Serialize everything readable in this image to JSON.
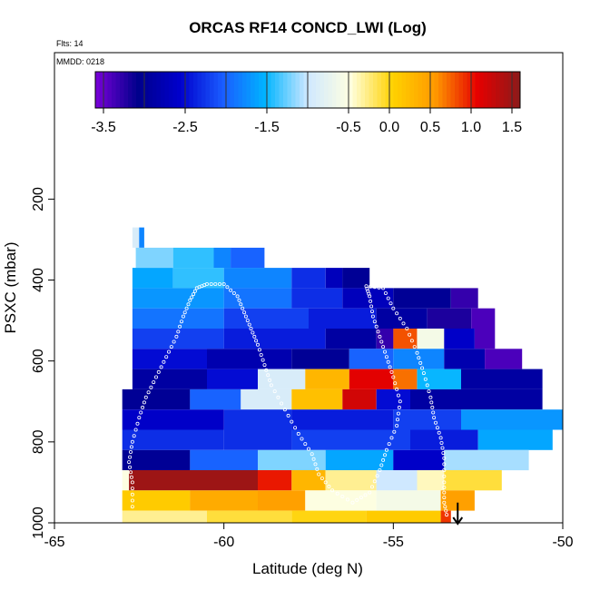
{
  "chart_data": {
    "type": "heatmap",
    "title": "ORCAS RF14 CONCD_LWI (Log)",
    "flights_label": "Flts: 14",
    "date_label": "MMDD: 0218",
    "xlabel": "Latitude (deg N)",
    "ylabel": "PSXC (mbar)",
    "xlim": [
      -65,
      -50
    ],
    "ylim": [
      1000,
      0
    ],
    "x_ticks": [
      -65,
      -60,
      -55,
      -50
    ],
    "y_ticks": [
      200,
      400,
      600,
      800,
      1000
    ],
    "colorbar": {
      "range": [
        -3.6,
        1.6
      ],
      "ticks": [
        -3.5,
        -2.5,
        -1.5,
        -0.5,
        0.0,
        0.5,
        1.0,
        1.5
      ],
      "tick_labels": [
        "-3.5",
        "-2.5",
        "-1.5",
        "-0.5",
        "0.0",
        "0.5",
        "1.0",
        "1.5"
      ],
      "colors": [
        "#7a00d9",
        "#00008b",
        "#0000cd",
        "#1a5cff",
        "#00b4ff",
        "#cfe8ff",
        "#ffffe0",
        "#ffd200",
        "#ff9900",
        "#e60000",
        "#8b1a1a"
      ]
    },
    "bands": [
      {
        "p": [
          270,
          320
        ],
        "segments": [
          {
            "x0": -62.7,
            "x1": -62.5,
            "v": -0.9
          },
          {
            "x0": -62.5,
            "x1": -62.35,
            "v": -1.8
          }
        ]
      },
      {
        "p": [
          320,
          370
        ],
        "segments": [
          {
            "x0": -62.6,
            "x1": -61.5,
            "v": -1.2
          },
          {
            "x0": -61.5,
            "x1": -60.3,
            "v": -1.4
          },
          {
            "x0": -60.3,
            "x1": -59.8,
            "v": -1.8
          },
          {
            "x0": -59.8,
            "x1": -58.8,
            "v": -2.0
          }
        ]
      },
      {
        "p": [
          370,
          420
        ],
        "segments": [
          {
            "x0": -62.7,
            "x1": -61.5,
            "v": -1.6
          },
          {
            "x0": -61.5,
            "x1": -60.0,
            "v": -1.4
          },
          {
            "x0": -60.0,
            "x1": -59.0,
            "v": -1.8
          },
          {
            "x0": -59.0,
            "x1": -58.0,
            "v": -1.8
          },
          {
            "x0": -58.0,
            "x1": -57.0,
            "v": -2.3
          },
          {
            "x0": -57.0,
            "x1": -56.5,
            "v": -2.7
          },
          {
            "x0": -56.5,
            "x1": -55.7,
            "v": -3.0
          }
        ]
      },
      {
        "p": [
          420,
          470
        ],
        "segments": [
          {
            "x0": -62.7,
            "x1": -60.0,
            "v": -1.7
          },
          {
            "x0": -60.0,
            "x1": -58.0,
            "v": -1.9
          },
          {
            "x0": -58.0,
            "x1": -56.5,
            "v": -2.3
          },
          {
            "x0": -56.5,
            "x1": -55.0,
            "v": -2.7
          },
          {
            "x0": -55.0,
            "x1": -53.3,
            "v": -3.0
          },
          {
            "x0": -53.3,
            "x1": -52.5,
            "v": -3.3
          }
        ]
      },
      {
        "p": [
          470,
          520
        ],
        "segments": [
          {
            "x0": -62.7,
            "x1": -60.0,
            "v": -1.9
          },
          {
            "x0": -60.0,
            "x1": -57.5,
            "v": -2.2
          },
          {
            "x0": -57.5,
            "x1": -55.5,
            "v": -2.4
          },
          {
            "x0": -55.5,
            "x1": -54.0,
            "v": -2.9
          },
          {
            "x0": -54.0,
            "x1": -52.7,
            "v": -3.2
          },
          {
            "x0": -52.7,
            "x1": -52.0,
            "v": -3.4
          }
        ]
      },
      {
        "p": [
          520,
          570
        ],
        "segments": [
          {
            "x0": -62.7,
            "x1": -60.0,
            "v": -2.2
          },
          {
            "x0": -60.0,
            "x1": -57.0,
            "v": -2.4
          },
          {
            "x0": -57.0,
            "x1": -55.5,
            "v": -2.9
          },
          {
            "x0": -55.5,
            "x1": -55.0,
            "v": -3.3
          },
          {
            "x0": -55.0,
            "x1": -54.3,
            "v": 0.8
          },
          {
            "x0": -54.3,
            "x1": -53.5,
            "v": -0.6
          },
          {
            "x0": -53.5,
            "x1": -52.6,
            "v": -2.6
          },
          {
            "x0": -52.6,
            "x1": -52.0,
            "v": -3.4
          }
        ]
      },
      {
        "p": [
          570,
          620
        ],
        "segments": [
          {
            "x0": -62.7,
            "x1": -60.5,
            "v": -2.5
          },
          {
            "x0": -60.5,
            "x1": -58.0,
            "v": -2.8
          },
          {
            "x0": -58.0,
            "x1": -56.3,
            "v": -3.0
          },
          {
            "x0": -56.3,
            "x1": -55.0,
            "v": -2.0
          },
          {
            "x0": -55.0,
            "x1": -53.5,
            "v": -1.8
          },
          {
            "x0": -53.5,
            "x1": -52.3,
            "v": -2.8
          },
          {
            "x0": -52.3,
            "x1": -51.2,
            "v": -3.4
          }
        ]
      },
      {
        "p": [
          620,
          670
        ],
        "segments": [
          {
            "x0": -62.7,
            "x1": -60.5,
            "v": -2.9
          },
          {
            "x0": -60.5,
            "x1": -59.0,
            "v": -2.5
          },
          {
            "x0": -59.0,
            "x1": -57.6,
            "v": -0.9
          },
          {
            "x0": -57.6,
            "x1": -56.3,
            "v": 0.3
          },
          {
            "x0": -56.3,
            "x1": -55.0,
            "v": 1.1
          },
          {
            "x0": -55.0,
            "x1": -54.3,
            "v": 0.7
          },
          {
            "x0": -54.3,
            "x1": -53.0,
            "v": -1.5
          },
          {
            "x0": -53.0,
            "x1": -50.6,
            "v": -2.9
          }
        ]
      },
      {
        "p": [
          670,
          720
        ],
        "segments": [
          {
            "x0": -63.0,
            "x1": -61.0,
            "v": -3.0
          },
          {
            "x0": -61.0,
            "x1": -59.5,
            "v": -2.0
          },
          {
            "x0": -59.5,
            "x1": -58.0,
            "v": -0.9
          },
          {
            "x0": -58.0,
            "x1": -56.5,
            "v": 0.2
          },
          {
            "x0": -56.5,
            "x1": -55.5,
            "v": 1.2
          },
          {
            "x0": -55.5,
            "x1": -54.5,
            "v": -2.5
          },
          {
            "x0": -54.5,
            "x1": -50.6,
            "v": -2.9
          }
        ]
      },
      {
        "p": [
          720,
          770
        ],
        "segments": [
          {
            "x0": -63.0,
            "x1": -60.0,
            "v": -2.6
          },
          {
            "x0": -60.0,
            "x1": -58.0,
            "v": -2.3
          },
          {
            "x0": -58.0,
            "x1": -55.0,
            "v": -2.4
          },
          {
            "x0": -55.0,
            "x1": -53.0,
            "v": -2.2
          },
          {
            "x0": -53.0,
            "x1": -50.0,
            "v": -1.7
          }
        ]
      },
      {
        "p": [
          770,
          820
        ],
        "segments": [
          {
            "x0": -63.0,
            "x1": -60.0,
            "v": -2.3
          },
          {
            "x0": -60.0,
            "x1": -58.0,
            "v": -2.3
          },
          {
            "x0": -58.0,
            "x1": -54.5,
            "v": -2.2
          },
          {
            "x0": -54.5,
            "x1": -52.5,
            "v": -2.4
          },
          {
            "x0": -52.5,
            "x1": -50.3,
            "v": -1.6
          }
        ]
      },
      {
        "p": [
          820,
          870
        ],
        "segments": [
          {
            "x0": -63.0,
            "x1": -61.0,
            "v": -3.0
          },
          {
            "x0": -61.0,
            "x1": -59.0,
            "v": -2.0
          },
          {
            "x0": -59.0,
            "x1": -57.0,
            "v": -1.2
          },
          {
            "x0": -57.0,
            "x1": -55.0,
            "v": -1.6
          },
          {
            "x0": -55.0,
            "x1": -53.5,
            "v": -2.6
          },
          {
            "x0": -53.5,
            "x1": -51.0,
            "v": -1.1
          }
        ]
      },
      {
        "p": [
          870,
          920
        ],
        "segments": [
          {
            "x0": -63.0,
            "x1": -62.8,
            "v": -0.5
          },
          {
            "x0": -62.8,
            "x1": -59.0,
            "v": 1.5
          },
          {
            "x0": -59.0,
            "x1": -58.0,
            "v": 1.0
          },
          {
            "x0": -58.0,
            "x1": -57.0,
            "v": 0.3
          },
          {
            "x0": -57.0,
            "x1": -55.5,
            "v": -0.3
          },
          {
            "x0": -55.5,
            "x1": -54.3,
            "v": -1.0
          },
          {
            "x0": -54.3,
            "x1": -53.5,
            "v": -0.4
          },
          {
            "x0": -53.5,
            "x1": -51.8,
            "v": -0.1
          }
        ]
      },
      {
        "p": [
          920,
          970
        ],
        "segments": [
          {
            "x0": -63.0,
            "x1": -61.0,
            "v": 0.1
          },
          {
            "x0": -61.0,
            "x1": -59.0,
            "v": 0.4
          },
          {
            "x0": -59.0,
            "x1": -57.6,
            "v": 0.5
          },
          {
            "x0": -57.6,
            "x1": -55.5,
            "v": -0.5
          },
          {
            "x0": -55.5,
            "x1": -53.6,
            "v": -0.6
          },
          {
            "x0": -53.6,
            "x1": -52.6,
            "v": 0.5
          }
        ]
      },
      {
        "p": [
          970,
          1000
        ],
        "segments": [
          {
            "x0": -63.0,
            "x1": -60.5,
            "v": -0.3
          },
          {
            "x0": -60.5,
            "x1": -58.0,
            "v": -0.1
          },
          {
            "x0": -58.0,
            "x1": -55.8,
            "v": 0.0
          },
          {
            "x0": -55.8,
            "x1": -53.6,
            "v": 0.1
          },
          {
            "x0": -53.6,
            "x1": -53.3,
            "v": 0.9
          }
        ]
      }
    ],
    "flight_track": [
      [
        -62.7,
        960
      ],
      [
        -62.7,
        900
      ],
      [
        -62.8,
        850
      ],
      [
        -62.7,
        800
      ],
      [
        -62.5,
        740
      ],
      [
        -62.3,
        690
      ],
      [
        -62.0,
        640
      ],
      [
        -61.7,
        590
      ],
      [
        -61.4,
        540
      ],
      [
        -61.2,
        490
      ],
      [
        -61.0,
        450
      ],
      [
        -60.8,
        420
      ],
      [
        -60.5,
        410
      ],
      [
        -60.0,
        410
      ],
      [
        -59.6,
        440
      ],
      [
        -59.4,
        480
      ],
      [
        -59.2,
        520
      ],
      [
        -59.0,
        560
      ],
      [
        -58.8,
        610
      ],
      [
        -58.6,
        660
      ],
      [
        -58.2,
        720
      ],
      [
        -57.8,
        780
      ],
      [
        -57.4,
        830
      ],
      [
        -57.2,
        880
      ],
      [
        -56.8,
        920
      ],
      [
        -56.2,
        950
      ],
      [
        -55.7,
        925
      ],
      [
        -55.4,
        870
      ],
      [
        -55.2,
        820
      ],
      [
        -54.9,
        760
      ],
      [
        -54.8,
        700
      ],
      [
        -55.0,
        640
      ],
      [
        -55.2,
        590
      ],
      [
        -55.4,
        540
      ],
      [
        -55.6,
        490
      ],
      [
        -55.7,
        440
      ],
      [
        -55.8,
        415
      ],
      [
        -55.3,
        420
      ],
      [
        -55.0,
        470
      ],
      [
        -54.6,
        520
      ],
      [
        -54.3,
        580
      ],
      [
        -54.1,
        630
      ],
      [
        -53.9,
        690
      ],
      [
        -53.8,
        740
      ],
      [
        -53.6,
        790
      ],
      [
        -53.5,
        840
      ],
      [
        -53.5,
        900
      ],
      [
        -53.5,
        950
      ],
      [
        -53.4,
        990
      ]
    ],
    "arrow": {
      "x": -53.1,
      "p_start": 950,
      "p_end": 1005
    }
  }
}
